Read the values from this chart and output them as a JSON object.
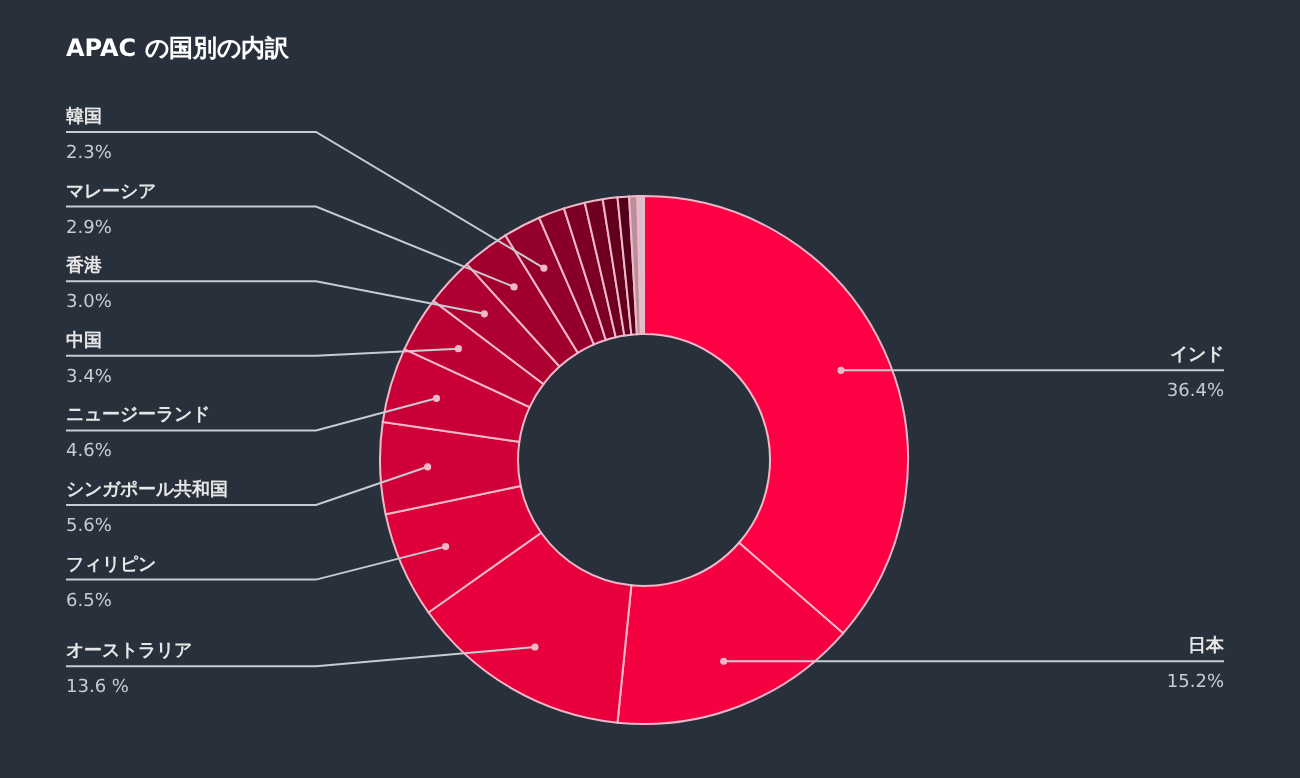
{
  "chart_data": {
    "type": "donut",
    "title": "APAC の国別の内訳",
    "categories": [
      "インド",
      "日本",
      "オーストラリア",
      "フィリピン",
      "シンガポール共和国",
      "ニュージーランド",
      "中国",
      "香港",
      "マレーシア",
      "韓国",
      null,
      null,
      null,
      null,
      null,
      null,
      null
    ],
    "values": [
      36.4,
      15.2,
      13.6,
      6.5,
      5.6,
      4.6,
      3.4,
      3.0,
      2.9,
      2.3,
      1.6,
      1.3,
      1.1,
      0.9,
      0.7,
      0.5,
      0.4
    ],
    "value_labels": [
      "36.4%",
      "15.2%",
      "13.6 %",
      "6.5%",
      "5.6%",
      "4.6%",
      "3.4%",
      "3.0%",
      "2.9%",
      "2.3%",
      null,
      null,
      null,
      null,
      null,
      null,
      null
    ],
    "colors": [
      "#ff0044",
      "#f50040",
      "#e8003d",
      "#dd003b",
      "#d20039",
      "#c80037",
      "#bb0034",
      "#ae0031",
      "#a1002e",
      "#94002b",
      "#880028",
      "#7c0025",
      "#700022",
      "#62001e",
      "#55001a",
      "#b8909c",
      "#d8c0c8"
    ]
  }
}
